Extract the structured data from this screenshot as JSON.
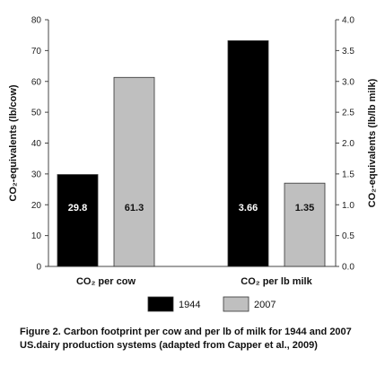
{
  "chart_data": {
    "type": "bar",
    "categories": [
      "CO₂ per cow",
      "CO₂ per lb milk"
    ],
    "series": [
      {
        "name": "1944",
        "color": "#000000",
        "values": [
          29.8,
          3.66
        ],
        "axis": [
          "left",
          "right"
        ]
      },
      {
        "name": "2007",
        "color": "#bfbfbf",
        "values": [
          61.3,
          1.35
        ],
        "axis": [
          "left",
          "right"
        ]
      }
    ],
    "data_labels": [
      [
        "29.8",
        "61.3"
      ],
      [
        "3.66",
        "1.35"
      ]
    ],
    "ylabel": "CO₂-equivalents (lb/cow)",
    "ylabel_right": "CO₂-equivalents (lb/lb milk)",
    "ylim": [
      0,
      80
    ],
    "ylim_right": [
      0,
      4.0
    ],
    "yticks": [
      "0",
      "10",
      "20",
      "30",
      "40",
      "50",
      "60",
      "70",
      "80"
    ],
    "yticks_right": [
      "0.0",
      "0.5",
      "1.0",
      "1.5",
      "2.0",
      "2.5",
      "3.0",
      "3.5",
      "4.0"
    ],
    "grid": false,
    "legend_position": "bottom"
  },
  "caption": "Figure 2. Carbon footprint per cow and per lb of milk for 1944 and 2007 US.dairy production systems (adapted from Capper et al., 2009)"
}
